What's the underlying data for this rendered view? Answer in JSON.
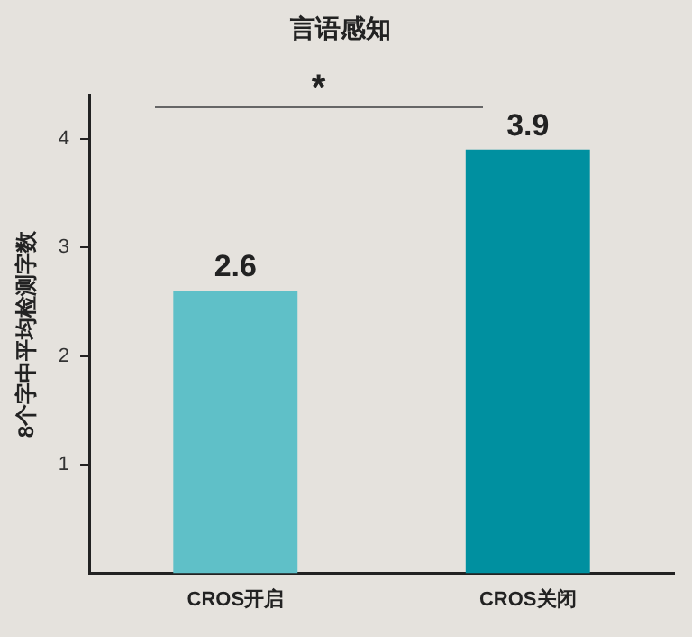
{
  "chart_data": {
    "type": "bar",
    "title": "言语感知",
    "ylabel": "8个字中平均检测字数",
    "categories": [
      "CROS开启",
      "CROS关闭"
    ],
    "values": [
      2.6,
      3.9
    ],
    "colors": [
      "#5fc0c8",
      "#0090a0"
    ],
    "ylim": [
      0,
      4.4
    ],
    "yticks": [
      1,
      2,
      3,
      4
    ],
    "grid": false,
    "legend": false,
    "data_labels": true,
    "annotations": [
      "*"
    ]
  }
}
